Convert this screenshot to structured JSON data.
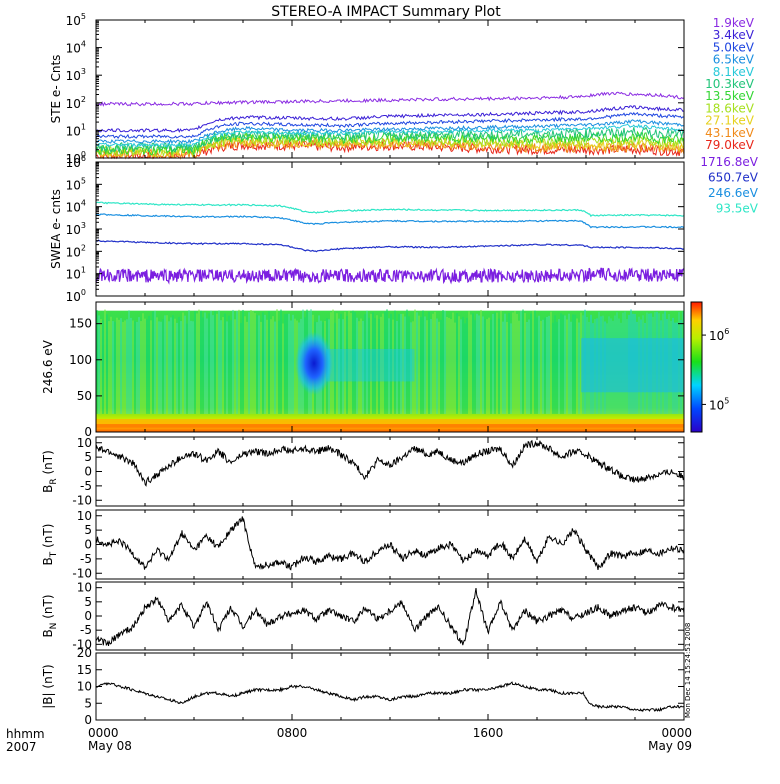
{
  "title": "STEREO-A IMPACT Summary Plot",
  "footer": {
    "left_top": "hhmm",
    "left_bottom": "2007",
    "x_ticks": [
      {
        "time": "0000",
        "date": "May 08",
        "hour": 0
      },
      {
        "time": "0800",
        "date": "",
        "hour": 8
      },
      {
        "time": "1600",
        "date": "",
        "hour": 16
      },
      {
        "time": "0000",
        "date": "May 09",
        "hour": 24
      }
    ],
    "stamp": "Mon Dec 14 15:24:51 2008"
  },
  "colors": {
    "panel_frame": "#000000",
    "trace": "#000000",
    "ste_low": "#8a2be2",
    "ste_mid": "#1f3fcf",
    "swea_high": "#2ee6c6",
    "swea_low": "#7b1fe0"
  },
  "chart_data": [
    {
      "id": "ste",
      "type": "line",
      "ylabel": "STE e- Cnts",
      "yscale": "log",
      "ylim": [
        1,
        100000
      ],
      "yticks": [
        1,
        10,
        100,
        1000,
        10000,
        100000
      ],
      "ytick_labels": [
        {
          "base": "10",
          "exp": "0"
        },
        {
          "base": "10",
          "exp": "1"
        },
        {
          "base": "10",
          "exp": "2"
        },
        {
          "base": "10",
          "exp": "3"
        },
        {
          "base": "10",
          "exp": "4"
        },
        {
          "base": "10",
          "exp": "5"
        }
      ],
      "series": [
        {
          "name": "1.9keV",
          "color": "#8a2be2",
          "x": [
            0,
            2,
            4,
            5,
            6,
            8,
            10,
            12,
            14,
            16,
            18,
            19.5,
            20,
            21,
            22,
            23,
            24
          ],
          "y": [
            90,
            90,
            92,
            100,
            105,
            110,
            118,
            125,
            135,
            140,
            150,
            160,
            180,
            220,
            200,
            190,
            150
          ]
        },
        {
          "name": "3.4keV",
          "color": "#3a1fd6",
          "x": [
            0,
            2,
            4,
            5,
            6,
            8,
            10,
            12,
            14,
            16,
            18,
            20,
            21,
            22,
            23,
            24
          ],
          "y": [
            10,
            10,
            10,
            24,
            30,
            28,
            26,
            32,
            36,
            38,
            42,
            48,
            60,
            70,
            60,
            55
          ]
        },
        {
          "name": "5.0keV",
          "color": "#1f46e0",
          "x": [
            0,
            2,
            4,
            5,
            6,
            8,
            10,
            12,
            14,
            16,
            18,
            20,
            21,
            22,
            23,
            24
          ],
          "y": [
            6,
            6,
            6,
            14,
            18,
            16,
            15,
            18,
            20,
            22,
            24,
            26,
            32,
            40,
            34,
            30
          ]
        },
        {
          "name": "6.5keV",
          "color": "#1a8fe0",
          "x": [
            0,
            2,
            4,
            5,
            6,
            8,
            10,
            12,
            14,
            16,
            18,
            20,
            21,
            22,
            23,
            24
          ],
          "y": [
            4,
            4,
            4,
            9,
            12,
            10,
            10,
            11,
            12,
            13,
            14,
            16,
            18,
            22,
            18,
            16
          ]
        },
        {
          "name": "8.1keV",
          "color": "#27c9d9",
          "x": [
            0,
            2,
            4,
            5,
            6,
            8,
            10,
            12,
            14,
            16,
            18,
            20,
            21,
            22,
            23,
            24
          ],
          "y": [
            3,
            3,
            3,
            7,
            9,
            8,
            8,
            9,
            9,
            10,
            10,
            12,
            13,
            15,
            12,
            10
          ]
        },
        {
          "name": "10.3keV",
          "color": "#22c47a",
          "x": [
            0,
            2,
            4,
            5,
            6,
            8,
            10,
            12,
            14,
            16,
            18,
            20,
            21,
            22,
            23,
            24
          ],
          "y": [
            2.5,
            2.5,
            2.5,
            6,
            7,
            6.5,
            6,
            6.5,
            7,
            7,
            7.5,
            8,
            8,
            9,
            8,
            7
          ]
        },
        {
          "name": "13.5keV",
          "color": "#33d633",
          "x": [
            0,
            2,
            4,
            5,
            6,
            8,
            10,
            12,
            14,
            16,
            18,
            20,
            21,
            22,
            23,
            24
          ],
          "y": [
            2,
            2,
            2,
            5,
            6,
            5.5,
            5,
            5.5,
            5.5,
            5,
            5,
            5.5,
            5.5,
            6,
            5,
            4.5
          ]
        },
        {
          "name": "18.6keV",
          "color": "#a6e01f",
          "x": [
            0,
            2,
            4,
            5,
            6,
            8,
            10,
            12,
            14,
            16,
            18,
            20,
            21,
            22,
            23,
            24
          ],
          "y": [
            1.8,
            1.8,
            1.8,
            4,
            5,
            4.5,
            4.2,
            4.5,
            4.5,
            4,
            4,
            4,
            4,
            4.5,
            4,
            3.5
          ]
        },
        {
          "name": "27.1keV",
          "color": "#e6d21f",
          "x": [
            0,
            2,
            4,
            5,
            6,
            8,
            10,
            12,
            14,
            16,
            18,
            20,
            21,
            22,
            23,
            24
          ],
          "y": [
            1.6,
            1.6,
            1.6,
            3.5,
            4,
            3.8,
            3.6,
            3.8,
            3.6,
            3.2,
            3,
            3,
            3,
            3.2,
            3,
            2.6
          ]
        },
        {
          "name": "43.1keV",
          "color": "#f08a1a",
          "x": [
            0,
            2,
            4,
            5,
            6,
            8,
            10,
            12,
            14,
            16,
            18,
            20,
            21,
            22,
            23,
            24
          ],
          "y": [
            1.4,
            1.4,
            1.4,
            3,
            3.5,
            3.2,
            3,
            3.2,
            3,
            2.6,
            2.4,
            2.4,
            2.4,
            2.5,
            2.3,
            2
          ]
        },
        {
          "name": "79.0keV",
          "color": "#e8261a",
          "x": [
            0,
            2,
            4,
            5,
            6,
            8,
            10,
            12,
            14,
            16,
            18,
            20,
            21,
            22,
            23,
            24
          ],
          "y": [
            1.2,
            1.2,
            1.2,
            2.5,
            3,
            2.8,
            2.5,
            2.8,
            2.5,
            2.2,
            2,
            2,
            2,
            2.1,
            1.9,
            1.7
          ]
        }
      ]
    },
    {
      "id": "swea",
      "type": "line",
      "ylabel": "SWEA e- cnts",
      "yscale": "log",
      "ylim": [
        1,
        1000000
      ],
      "yticks": [
        1,
        10,
        100,
        1000,
        10000,
        100000,
        1000000
      ],
      "ytick_labels": [
        {
          "base": "10",
          "exp": "0"
        },
        {
          "base": "10",
          "exp": "1"
        },
        {
          "base": "10",
          "exp": "2"
        },
        {
          "base": "10",
          "exp": "3"
        },
        {
          "base": "10",
          "exp": "4"
        },
        {
          "base": "10",
          "exp": "5"
        },
        {
          "base": "10",
          "exp": "6"
        }
      ],
      "series": [
        {
          "name": "93.5eV",
          "color": "#2ee6c6",
          "x": [
            0,
            2,
            4,
            6,
            7.5,
            8.5,
            9,
            10,
            12,
            14,
            16,
            18,
            19.8,
            20.2,
            22,
            24
          ],
          "y": [
            15000,
            13000,
            12000,
            12000,
            11000,
            6000,
            5500,
            6500,
            7500,
            7000,
            6800,
            7000,
            7000,
            4000,
            4200,
            4000
          ]
        },
        {
          "name": "246.6eV",
          "color": "#1a8fe0",
          "x": [
            0,
            2,
            4,
            6,
            7.5,
            8.5,
            9,
            10,
            12,
            14,
            16,
            18,
            19.8,
            20.2,
            22,
            24
          ],
          "y": [
            4500,
            4000,
            3500,
            3600,
            3200,
            1800,
            1700,
            2000,
            2300,
            2200,
            2200,
            2300,
            2300,
            1200,
            1250,
            1200
          ]
        },
        {
          "name": "650.7eV",
          "color": "#1f2fc8",
          "x": [
            0,
            2,
            4,
            6,
            7.5,
            8.5,
            9,
            10,
            12,
            14,
            16,
            18,
            19.8,
            20.2,
            22,
            24
          ],
          "y": [
            300,
            250,
            220,
            220,
            200,
            110,
            100,
            130,
            160,
            150,
            170,
            200,
            190,
            150,
            150,
            130
          ]
        },
        {
          "name": "1716.8eV",
          "color": "#7b1fe0",
          "x": [
            0,
            2,
            4,
            6,
            8,
            10,
            12,
            14,
            16,
            18,
            20,
            22,
            24
          ],
          "y": [
            8,
            8,
            8,
            8,
            8,
            8,
            8,
            8,
            8,
            8,
            9,
            9,
            8
          ]
        }
      ]
    },
    {
      "id": "spectrogram",
      "type": "heatmap",
      "ylabel": "246.6 eV",
      "ylim": [
        0,
        180
      ],
      "yticks": [
        0,
        50,
        100,
        150
      ],
      "colorbar": {
        "ticks": [
          {
            "base": "10",
            "exp": "5",
            "value": 100000
          },
          {
            "base": "10",
            "exp": "6",
            "value": 1000000
          }
        ],
        "range": [
          40000,
          3000000
        ],
        "scale": "log"
      },
      "features": [
        {
          "label": "depletion",
          "x_hours": [
            8.4,
            9.4
          ],
          "y_deg": [
            60,
            130
          ]
        },
        {
          "label": "enhanced field-aligned flux",
          "x_hours": [
            0,
            24
          ],
          "y_deg": [
            0,
            20
          ]
        }
      ]
    },
    {
      "id": "br",
      "type": "line",
      "ylabel_main": "B",
      "ylabel_sub": "R",
      "ylabel_unit": "(nT)",
      "ylim": [
        -12,
        12
      ],
      "yticks": [
        -10,
        -5,
        0,
        5,
        10
      ],
      "x": [
        0,
        0.5,
        1,
        1.5,
        2,
        2.5,
        3,
        3.5,
        4,
        4.5,
        5,
        5.5,
        6,
        6.5,
        7,
        7.5,
        8,
        8.5,
        9,
        9.5,
        10,
        10.5,
        11,
        11.5,
        12,
        12.5,
        13,
        13.5,
        14,
        14.5,
        15,
        15.5,
        16,
        16.5,
        17,
        17.5,
        18,
        18.5,
        19,
        19.5,
        20,
        20.5,
        21,
        21.5,
        22,
        22.5,
        23,
        23.5,
        24
      ],
      "y": [
        8,
        7,
        5,
        3,
        -4,
        -1,
        2,
        5,
        6,
        4,
        7,
        3,
        6,
        7,
        6,
        8,
        7,
        8,
        7,
        8,
        6,
        3,
        -2,
        4,
        2,
        5,
        8,
        6,
        7,
        4,
        3,
        6,
        7,
        8,
        2,
        9,
        10,
        8,
        5,
        7,
        6,
        3,
        1,
        -2,
        -3,
        -2,
        -1,
        0,
        -2
      ]
    },
    {
      "id": "bt",
      "type": "line",
      "ylabel_main": "B",
      "ylabel_sub": "T",
      "ylabel_unit": "(nT)",
      "ylim": [
        -12,
        12
      ],
      "yticks": [
        -10,
        -5,
        0,
        5,
        10
      ],
      "x": [
        0,
        0.5,
        1,
        1.5,
        2,
        2.5,
        3,
        3.5,
        4,
        4.5,
        5,
        5.5,
        6,
        6.5,
        7,
        7.5,
        8,
        8.5,
        9,
        9.5,
        10,
        10.5,
        11,
        11.5,
        12,
        12.5,
        13,
        13.5,
        14,
        14.5,
        15,
        15.5,
        16,
        16.5,
        17,
        17.5,
        18,
        18.5,
        19,
        19.5,
        20,
        20.5,
        21,
        21.5,
        22,
        22.5,
        23,
        23.5,
        24
      ],
      "y": [
        2,
        0,
        1,
        -3,
        -8,
        -2,
        -5,
        4,
        -2,
        3,
        -1,
        5,
        9,
        -8,
        -7,
        -6,
        -8,
        -4,
        -6,
        -4,
        -5,
        -3,
        -6,
        -2,
        0,
        -5,
        -2,
        -4,
        -1,
        0,
        -6,
        -2,
        -4,
        1,
        -5,
        2,
        -6,
        3,
        0,
        5,
        -2,
        -8,
        -3,
        -4,
        -3,
        -2,
        -3,
        -1,
        -2
      ]
    },
    {
      "id": "bn",
      "type": "line",
      "ylabel_main": "B",
      "ylabel_sub": "N",
      "ylabel_unit": "(nT)",
      "ylim": [
        -12,
        12
      ],
      "yticks": [
        -10,
        -5,
        0,
        5,
        10
      ],
      "x": [
        0,
        0.5,
        1,
        1.5,
        2,
        2.5,
        3,
        3.5,
        4,
        4.5,
        5,
        5.5,
        6,
        6.5,
        7,
        7.5,
        8,
        8.5,
        9,
        9.5,
        10,
        10.5,
        11,
        11.5,
        12,
        12.5,
        13,
        13.5,
        14,
        14.5,
        15,
        15.5,
        16,
        16.5,
        17,
        17.5,
        18,
        18.5,
        19,
        19.5,
        20,
        20.5,
        21,
        21.5,
        22,
        22.5,
        23,
        23.5,
        24
      ],
      "y": [
        -8,
        -10,
        -6,
        -4,
        3,
        6,
        -2,
        4,
        -4,
        5,
        -5,
        3,
        -4,
        2,
        -3,
        0,
        1,
        2,
        -1,
        2,
        0,
        -2,
        3,
        -1,
        2,
        5,
        -5,
        0,
        3,
        -4,
        -10,
        9,
        -6,
        5,
        -5,
        2,
        -2,
        0,
        2,
        -1,
        1,
        3,
        0,
        2,
        3,
        1,
        4,
        3,
        2
      ]
    },
    {
      "id": "bmag",
      "type": "line",
      "ylabel_main": "|B|",
      "ylabel_sub": "",
      "ylabel_unit": "(nT)",
      "ylim": [
        0,
        20
      ],
      "yticks": [
        0,
        5,
        10,
        15,
        20
      ],
      "x": [
        0,
        0.5,
        1,
        1.5,
        2,
        2.5,
        3,
        3.5,
        4,
        4.5,
        5,
        5.5,
        6,
        6.5,
        7,
        7.5,
        8,
        8.5,
        9,
        9.5,
        10,
        10.5,
        11,
        11.5,
        12,
        12.5,
        13,
        13.5,
        14,
        14.5,
        15,
        15.5,
        16,
        16.5,
        17,
        17.5,
        18,
        18.5,
        19,
        19.5,
        19.9,
        20.1,
        20.5,
        21,
        21.5,
        22,
        22.5,
        23,
        23.5,
        24
      ],
      "y": [
        10,
        11,
        10,
        9,
        8,
        7,
        6,
        5,
        7,
        8,
        8,
        7,
        8,
        9,
        9,
        9,
        10,
        10,
        9,
        8,
        7,
        6,
        7,
        7,
        6,
        7,
        7,
        8,
        8,
        8,
        9,
        9,
        9,
        10,
        11,
        10,
        9,
        9,
        8,
        8,
        8,
        5,
        4,
        4,
        4,
        3,
        3,
        3,
        4,
        4
      ]
    }
  ]
}
